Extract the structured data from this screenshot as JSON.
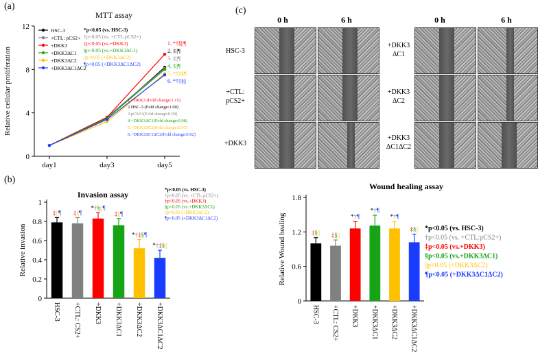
{
  "panels": {
    "a": "(a)",
    "b": "(b)",
    "c": "(c)"
  },
  "colors": {
    "black": "#000000",
    "gray": "#808080",
    "red": "#ff0000",
    "green": "#16a316",
    "orange": "#ffc000",
    "blue": "#1a3cff"
  },
  "chart_data": [
    {
      "id": "mtt",
      "type": "line",
      "title": "MTT assay",
      "xlabel": "",
      "ylabel": "Relative cellular proliferation",
      "categories": [
        "day1",
        "day3",
        "day5"
      ],
      "ylim": [
        0,
        12
      ],
      "yticks": [
        "0",
        "4",
        "8",
        "12"
      ],
      "series": [
        {
          "name": "HSC-3",
          "color": "#000000",
          "values": [
            1.0,
            3.5,
            8.2
          ]
        },
        {
          "name": "+CTL: pCS2+",
          "color": "#808080",
          "values": [
            1.0,
            3.6,
            8.1
          ]
        },
        {
          "name": "+DKK3",
          "color": "#ff0000",
          "values": [
            1.0,
            3.6,
            9.4
          ]
        },
        {
          "name": "+DKK3ΔC1",
          "color": "#16a316",
          "values": [
            1.0,
            3.5,
            8.0
          ]
        },
        {
          "name": "+DKK3ΔC2",
          "color": "#ffc000",
          "values": [
            1.0,
            3.2,
            7.6
          ]
        },
        {
          "name": "+DKK3ΔC1ΔC2",
          "color": "#1a3cff",
          "values": [
            1.0,
            3.4,
            7.5
          ]
        }
      ],
      "end_labels": [
        {
          "text": "1. *†§||¶",
          "color": "#ff0000"
        },
        {
          "text": "2. ‡||¶",
          "color": "#000000"
        },
        {
          "text": "3. ‡||¶",
          "color": "#808080"
        },
        {
          "text": "4. ‡||¶",
          "color": "#16a316"
        },
        {
          "text": "5. *†‡§¶",
          "color": "#ffc000"
        },
        {
          "text": "6. *†‡§||",
          "color": "#1a3cff"
        }
      ],
      "stats": [
        {
          "text": "*p<0.05 (vs. HSC-3)",
          "color": "#000000",
          "bold": true
        },
        {
          "text": "†p<0.05 (vs. +CTL:pCS2+)",
          "color": "#808080",
          "bold": false
        },
        {
          "text": "‡p<0.05 (vs.+DKK3)",
          "color": "#ff0000",
          "bold": false
        },
        {
          "text": "§p<0.05 (vs.+DKK3ΔC1)",
          "color": "#16a316",
          "bold": false
        },
        {
          "text": "||p<0.05 (+DKK3ΔC2)",
          "color": "#ffc000",
          "bold": false
        },
        {
          "text": "¶p<0.05 (+DKK3ΔC1ΔC2)",
          "color": "#1a3cff",
          "bold": false
        }
      ],
      "fold_changes": [
        {
          "text": "1.+DKK3 (Fold change:1.15)",
          "color": "#ff0000"
        },
        {
          "text": "2.HSC-3 (Fold change:1.00)",
          "color": "#000000"
        },
        {
          "text": "3.pCS2+(Fold change:0.99)",
          "color": "#808080"
        },
        {
          "text": "4.+DKK3ΔC1(Fold change:0.98)",
          "color": "#16a316"
        },
        {
          "text": "5.+DKK3ΔC2(Fold change:0.93)",
          "color": "#ffc000"
        },
        {
          "text": "6.+DKK3ΔC1ΔC2(Fold change:0.92)",
          "color": "#1a3cff"
        }
      ]
    },
    {
      "id": "invasion",
      "type": "bar",
      "title": "Invasion assay",
      "xlabel": "",
      "ylabel": "Relative invasion",
      "categories": [
        "HSC-3",
        "+CTL: CS2+",
        "+DKK3",
        "+DKK3ΔC1",
        "+DKK3ΔC2",
        "+DKK3ΔC1ΔC2"
      ],
      "values": [
        0.79,
        0.78,
        0.83,
        0.76,
        0.52,
        0.42
      ],
      "errors": [
        0.05,
        0.06,
        0.06,
        0.07,
        0.09,
        0.08
      ],
      "colors": [
        "#000000",
        "#808080",
        "#ff0000",
        "#16a316",
        "#ffc000",
        "#1a3cff"
      ],
      "ylim": [
        0,
        1
      ],
      "yticks": [
        "0",
        "0.2",
        "0.4",
        "0.6",
        "0.8",
        "1"
      ],
      "marks": [
        [
          {
            "t": "‡",
            "c": "#ff0000"
          },
          {
            "t": "||",
            "c": "#ffc000"
          },
          {
            "t": "¶",
            "c": "#1a3cff"
          }
        ],
        [
          {
            "t": "‡",
            "c": "#ff0000"
          },
          {
            "t": "||",
            "c": "#ffc000"
          },
          {
            "t": "¶",
            "c": "#1a3cff"
          }
        ],
        [
          {
            "t": "*",
            "c": "#000000"
          },
          {
            "t": "†",
            "c": "#808080"
          },
          {
            "t": "§",
            "c": "#16a316"
          },
          {
            "t": "||",
            "c": "#ffc000"
          },
          {
            "t": "¶",
            "c": "#1a3cff"
          }
        ],
        [
          {
            "t": "‡",
            "c": "#ff0000"
          },
          {
            "t": "||",
            "c": "#ffc000"
          },
          {
            "t": "¶",
            "c": "#1a3cff"
          }
        ],
        [
          {
            "t": "*",
            "c": "#000000"
          },
          {
            "t": "†",
            "c": "#808080"
          },
          {
            "t": "‡",
            "c": "#ff0000"
          },
          {
            "t": "§",
            "c": "#16a316"
          },
          {
            "t": "¶",
            "c": "#1a3cff"
          }
        ],
        [
          {
            "t": "*",
            "c": "#000000"
          },
          {
            "t": "†",
            "c": "#808080"
          },
          {
            "t": "‡",
            "c": "#ff0000"
          },
          {
            "t": "§",
            "c": "#16a316"
          },
          {
            "t": "||",
            "c": "#ffc000"
          }
        ]
      ],
      "stats": [
        {
          "text": "*p<0.05 (vs. HSC-3)",
          "color": "#000000",
          "bold": true
        },
        {
          "text": "†p<0.05 (vs. +CTL:pCS2+)",
          "color": "#808080",
          "bold": false
        },
        {
          "text": "‡p<0.05 (vs.+DKK3)",
          "color": "#ff0000",
          "bold": false
        },
        {
          "text": "§p<0.05 (vs.+DKK3ΔC1)",
          "color": "#16a316",
          "bold": false
        },
        {
          "text": "||p<0.05 (+DKK3ΔC2)",
          "color": "#ffc000",
          "bold": false
        },
        {
          "text": "¶p<0.05 (+DKK3ΔC1ΔC2)",
          "color": "#1a3cff",
          "bold": false
        }
      ]
    },
    {
      "id": "wound",
      "type": "bar",
      "title": "Wound healing assay",
      "xlabel": "",
      "ylabel": "Relative Wound healing",
      "categories": [
        "HSC-3",
        "+CTL: CS2+",
        "+DKK3",
        "+DKK3ΔC1",
        "+DKK3ΔC2",
        "+DKK3ΔC1ΔC2"
      ],
      "values": [
        1.0,
        0.96,
        1.26,
        1.31,
        1.26,
        1.02
      ],
      "errors": [
        0.1,
        0.1,
        0.12,
        0.18,
        0.12,
        0.14
      ],
      "colors": [
        "#000000",
        "#808080",
        "#ff0000",
        "#16a316",
        "#ffc000",
        "#1a3cff"
      ],
      "ylim": [
        0,
        1.8
      ],
      "yticks": [
        "0",
        "0.6",
        "1.2",
        "1.8"
      ],
      "marks": [
        [
          {
            "t": "‡",
            "c": "#ff0000"
          },
          {
            "t": "§",
            "c": "#16a316"
          },
          {
            "t": "||",
            "c": "#ffc000"
          }
        ],
        [
          {
            "t": "‡",
            "c": "#ff0000"
          },
          {
            "t": "§",
            "c": "#16a316"
          },
          {
            "t": "||",
            "c": "#ffc000"
          }
        ],
        [
          {
            "t": "*",
            "c": "#000000"
          },
          {
            "t": "†",
            "c": "#808080"
          },
          {
            "t": "¶",
            "c": "#1a3cff"
          }
        ],
        [
          {
            "t": "*",
            "c": "#000000"
          },
          {
            "t": "†",
            "c": "#808080"
          },
          {
            "t": "¶",
            "c": "#1a3cff"
          }
        ],
        [
          {
            "t": "*",
            "c": "#000000"
          },
          {
            "t": "†",
            "c": "#808080"
          },
          {
            "t": "¶",
            "c": "#1a3cff"
          }
        ],
        [
          {
            "t": "‡",
            "c": "#ff0000"
          },
          {
            "t": "§",
            "c": "#16a316"
          },
          {
            "t": "||",
            "c": "#ffc000"
          }
        ]
      ],
      "stats": [
        {
          "text": "*p<0.05 (vs. HSC-3)",
          "color": "#000000",
          "bold": true
        },
        {
          "text": "†p<0.05 (vs. +CTL:pCS2+)",
          "color": "#808080",
          "bold": false
        },
        {
          "text": "‡p<0.05 (vs.+DKK3)",
          "color": "#ff0000",
          "bold": true
        },
        {
          "text": "§p<0.05 (vs.+DKK3ΔC1)",
          "color": "#16a316",
          "bold": true
        },
        {
          "text": "||p<0.05 (+DKK3ΔC2)",
          "color": "#ffc000",
          "bold": false
        },
        {
          "text": "¶p<0.05 (+DKK3ΔC1ΔC2)",
          "color": "#1a3cff",
          "bold": true
        }
      ]
    }
  ],
  "micrographs": {
    "col_headers": [
      "0 h",
      "6 h",
      "0 h",
      "6 h"
    ],
    "left_rows": [
      [
        "HSC-3"
      ],
      [
        "+CTL:",
        "pCS2+"
      ],
      [
        "+DKK3"
      ]
    ],
    "right_rows": [
      [
        "+DKK3",
        "ΔC1"
      ],
      [
        "+DKK3",
        "ΔC2"
      ],
      [
        "+DKK3",
        "ΔC1ΔC2"
      ]
    ]
  }
}
